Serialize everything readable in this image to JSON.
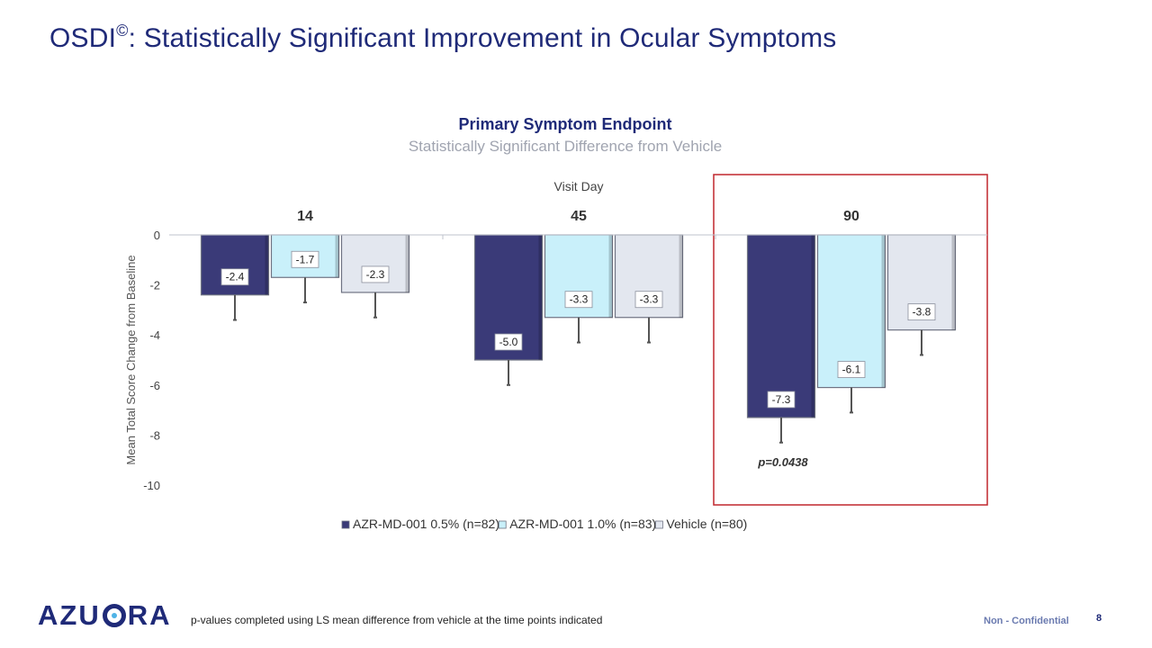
{
  "slide": {
    "title_main": "OSDI",
    "title_symbol": "©",
    "title_rest": ": Statistically Significant Improvement in Ocular Symptoms",
    "footnote": "p-values completed using LS mean difference from vehicle at the time points indicated",
    "confidential": "Non - Confidential",
    "page_number": "8",
    "logo": "AZURA"
  },
  "chart_data": {
    "type": "bar",
    "title": "Primary Symptom Endpoint",
    "subtitle": "Statistically Significant Difference from Vehicle",
    "xlabel": "Visit Day",
    "ylabel": "Mean Total Score Change from Baseline",
    "categories": [
      "14",
      "45",
      "90"
    ],
    "ylim": [
      -10,
      0
    ],
    "yticks": [
      0,
      -2,
      -4,
      -6,
      -8,
      -10
    ],
    "series": [
      {
        "name": "AZR-MD-001 0.5% (n=82)",
        "values": [
          -2.4,
          -5.0,
          -7.3
        ],
        "labels": [
          "-2.4",
          "-5.0",
          "-7.3"
        ],
        "error": [
          1.0,
          1.0,
          1.0
        ],
        "color": "#3a3a78"
      },
      {
        "name": "AZR-MD-001 1.0% (n=83)",
        "values": [
          -1.7,
          -3.3,
          -6.1
        ],
        "labels": [
          "-1.7",
          "-3.3",
          "-6.1"
        ],
        "error": [
          1.0,
          1.0,
          1.0
        ],
        "color": "#c9f0fa"
      },
      {
        "name": "Vehicle (n=80)",
        "values": [
          -2.3,
          -3.3,
          -3.8
        ],
        "labels": [
          "-2.3",
          "-3.3",
          "-3.8"
        ],
        "error": [
          1.0,
          1.0,
          1.0
        ],
        "color": "#e3e7ef"
      }
    ],
    "annotations": [
      {
        "text": "p=0.0438",
        "category": "90"
      }
    ],
    "highlight": {
      "category": "90",
      "color": "#c0272d"
    },
    "legend": "bottom",
    "grid": false
  }
}
